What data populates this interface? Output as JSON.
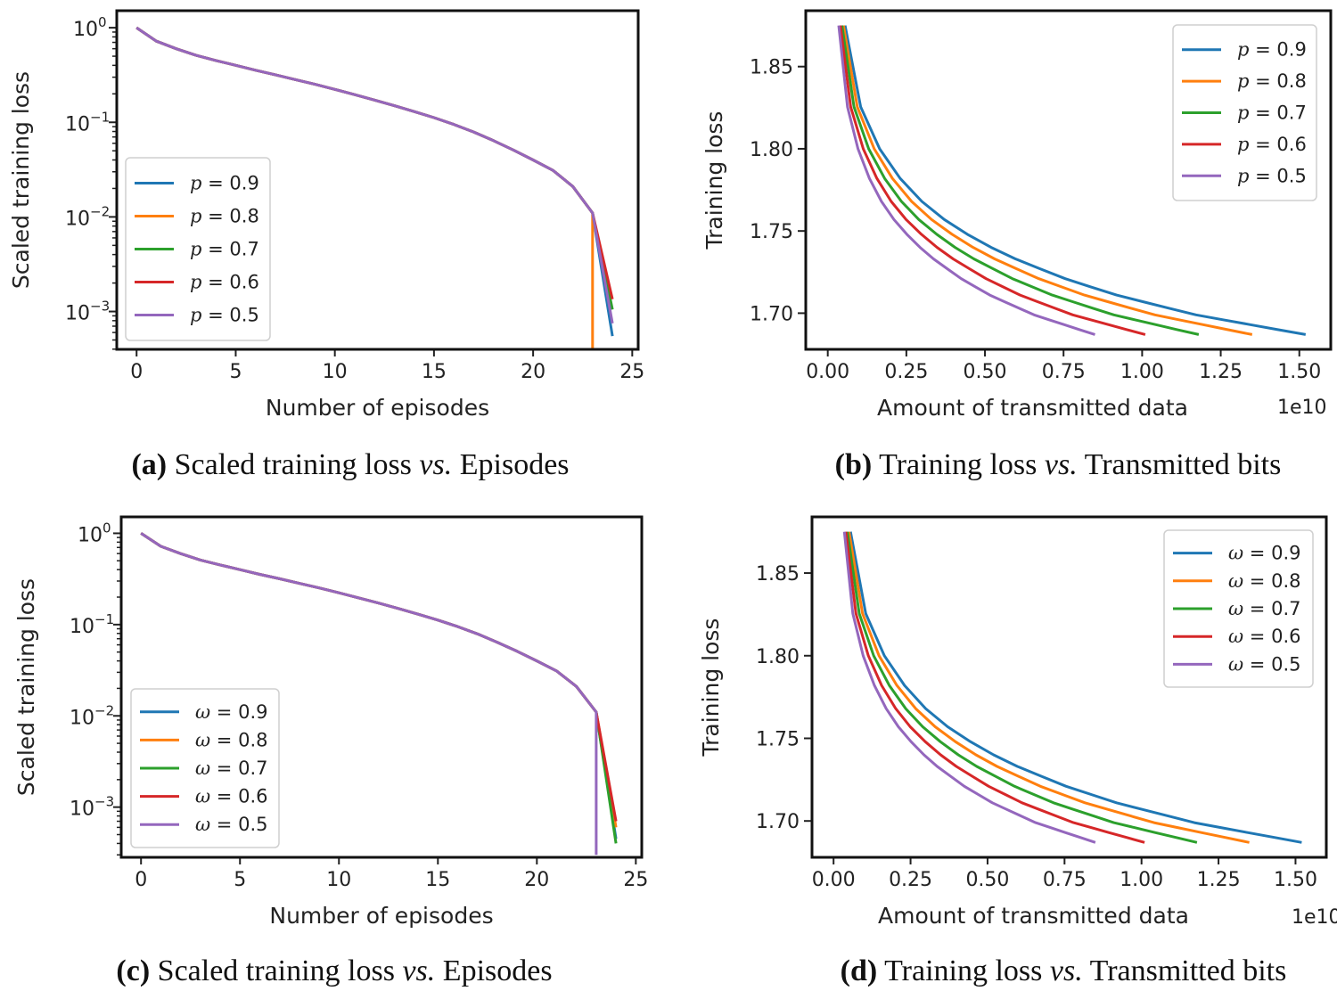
{
  "colors": {
    "series": [
      "#1f77b4",
      "#ff7f0e",
      "#2ca02c",
      "#d62728",
      "#9467bd"
    ]
  },
  "chart_data": [
    {
      "id": "a",
      "type": "line",
      "title": "",
      "xlabel": "Number of episodes",
      "ylabel": "Scaled training loss",
      "yscale": "log",
      "xlim": [
        -1,
        25.3
      ],
      "ylim_exp": [
        -3.4,
        0.18
      ],
      "xticks": [
        0,
        5,
        10,
        15,
        20,
        25
      ],
      "xtick_labels": [
        "0",
        "5",
        "10",
        "15",
        "20",
        "25"
      ],
      "yticks_exp": [
        0,
        -1,
        -2,
        -3
      ],
      "ytick_labels": [
        {
          "base": "10",
          "exp": "0"
        },
        {
          "base": "10",
          "exp": "−1"
        },
        {
          "base": "10",
          "exp": "−2"
        },
        {
          "base": "10",
          "exp": "−3"
        }
      ],
      "legend_position": "center-left",
      "x": [
        0,
        1,
        2,
        3,
        4,
        5,
        6,
        7,
        8,
        9,
        10,
        11,
        12,
        13,
        14,
        15,
        16,
        17,
        18,
        19,
        20,
        21,
        22,
        23
      ],
      "y": [
        1.0,
        0.72,
        0.6,
        0.51,
        0.45,
        0.4,
        0.355,
        0.318,
        0.283,
        0.252,
        0.223,
        0.196,
        0.172,
        0.15,
        0.13,
        0.112,
        0.095,
        0.079,
        0.064,
        0.051,
        0.04,
        0.031,
        0.021,
        0.011
      ],
      "series": [
        {
          "name": "p = 0.9",
          "symbol": "p",
          "value": "0.9",
          "end": [
            24,
            0.00055
          ]
        },
        {
          "name": "p = 0.8",
          "symbol": "p",
          "value": "0.8",
          "end": [
            23,
            0.0003
          ]
        },
        {
          "name": "p = 0.7",
          "symbol": "p",
          "value": "0.7",
          "end": [
            24,
            0.00105
          ]
        },
        {
          "name": "p = 0.6",
          "symbol": "p",
          "value": "0.6",
          "end": [
            24,
            0.00135
          ]
        },
        {
          "name": "p = 0.5",
          "symbol": "p",
          "value": "0.5",
          "end": [
            24,
            0.00075
          ]
        }
      ]
    },
    {
      "id": "b",
      "type": "line",
      "title": "",
      "xlabel": "Amount of transmitted data",
      "ylabel": "Training loss",
      "x_offset_label": "1e10",
      "xlim": [
        -0.07,
        1.6
      ],
      "ylim": [
        1.678,
        1.884
      ],
      "xticks": [
        0,
        0.25,
        0.5,
        0.75,
        1.0,
        1.25,
        1.5
      ],
      "xtick_labels": [
        "0.00",
        "0.25",
        "0.50",
        "0.75",
        "1.00",
        "1.25",
        "1.50"
      ],
      "yticks": [
        1.85,
        1.8,
        1.75,
        1.7
      ],
      "ytick_labels": [
        "1.85",
        "1.80",
        "1.75",
        "1.70"
      ],
      "legend_position": "top-right",
      "loss_curve": [
        1.875,
        1.8255,
        1.8,
        1.782,
        1.768,
        1.757,
        1.748,
        1.74,
        1.733,
        1.727,
        1.721,
        1.716,
        1.711,
        1.707,
        1.703,
        1.699,
        1.696,
        1.693,
        1.69,
        1.687
      ],
      "series": [
        {
          "name": "p = 0.9",
          "symbol": "p",
          "value": "0.9",
          "x_end": 1.52
        },
        {
          "name": "p = 0.8",
          "symbol": "p",
          "value": "0.8",
          "x_end": 1.35
        },
        {
          "name": "p = 0.7",
          "symbol": "p",
          "value": "0.7",
          "x_end": 1.18
        },
        {
          "name": "p = 0.6",
          "symbol": "p",
          "value": "0.6",
          "x_end": 1.01
        },
        {
          "name": "p = 0.5",
          "symbol": "p",
          "value": "0.5",
          "x_end": 0.85
        }
      ]
    },
    {
      "id": "c",
      "type": "line",
      "title": "",
      "xlabel": "Number of episodes",
      "ylabel": "Scaled training loss",
      "yscale": "log",
      "xlim": [
        -1,
        25.3
      ],
      "ylim_exp": [
        -3.55,
        0.18
      ],
      "xticks": [
        0,
        5,
        10,
        15,
        20,
        25
      ],
      "xtick_labels": [
        "0",
        "5",
        "10",
        "15",
        "20",
        "25"
      ],
      "yticks_exp": [
        0,
        -1,
        -2,
        -3
      ],
      "ytick_labels": [
        {
          "base": "10",
          "exp": "0"
        },
        {
          "base": "10",
          "exp": "−1"
        },
        {
          "base": "10",
          "exp": "−2"
        },
        {
          "base": "10",
          "exp": "−3"
        }
      ],
      "legend_position": "lower-left",
      "x": [
        0,
        1,
        2,
        3,
        4,
        5,
        6,
        7,
        8,
        9,
        10,
        11,
        12,
        13,
        14,
        15,
        16,
        17,
        18,
        19,
        20,
        21,
        22,
        23
      ],
      "y": [
        1.0,
        0.72,
        0.6,
        0.51,
        0.45,
        0.4,
        0.355,
        0.318,
        0.283,
        0.252,
        0.223,
        0.196,
        0.172,
        0.15,
        0.13,
        0.112,
        0.095,
        0.079,
        0.064,
        0.051,
        0.04,
        0.031,
        0.021,
        0.011
      ],
      "series": [
        {
          "name": "ω = 0.9",
          "symbol": "ω",
          "value": "0.9",
          "end": [
            24,
            0.00045
          ]
        },
        {
          "name": "ω = 0.8",
          "symbol": "ω",
          "value": "0.8",
          "end": [
            24,
            0.0006
          ]
        },
        {
          "name": "ω = 0.7",
          "symbol": "ω",
          "value": "0.7",
          "end": [
            24,
            0.0004
          ]
        },
        {
          "name": "ω = 0.6",
          "symbol": "ω",
          "value": "0.6",
          "end": [
            24,
            0.0007
          ]
        },
        {
          "name": "ω = 0.5",
          "symbol": "ω",
          "value": "0.5",
          "end": [
            23,
            0.0003
          ]
        }
      ]
    },
    {
      "id": "d",
      "type": "line",
      "title": "",
      "xlabel": "Amount of transmitted data",
      "ylabel": "Training loss",
      "x_offset_label": "1e10",
      "xlim": [
        -0.07,
        1.6
      ],
      "ylim": [
        1.678,
        1.884
      ],
      "xticks": [
        0,
        0.25,
        0.5,
        0.75,
        1.0,
        1.25,
        1.5
      ],
      "xtick_labels": [
        "0.00",
        "0.25",
        "0.50",
        "0.75",
        "1.00",
        "1.25",
        "1.50"
      ],
      "yticks": [
        1.85,
        1.8,
        1.75,
        1.7
      ],
      "ytick_labels": [
        "1.85",
        "1.80",
        "1.75",
        "1.70"
      ],
      "legend_position": "top-right",
      "loss_curve": [
        1.875,
        1.8255,
        1.8,
        1.782,
        1.768,
        1.757,
        1.748,
        1.74,
        1.733,
        1.727,
        1.721,
        1.716,
        1.711,
        1.707,
        1.703,
        1.699,
        1.696,
        1.693,
        1.69,
        1.687
      ],
      "series": [
        {
          "name": "ω = 0.9",
          "symbol": "ω",
          "value": "0.9",
          "x_end": 1.52
        },
        {
          "name": "ω = 0.8",
          "symbol": "ω",
          "value": "0.8",
          "x_end": 1.35
        },
        {
          "name": "ω = 0.7",
          "symbol": "ω",
          "value": "0.7",
          "x_end": 1.18
        },
        {
          "name": "ω = 0.6",
          "symbol": "ω",
          "value": "0.6",
          "x_end": 1.01
        },
        {
          "name": "ω = 0.5",
          "symbol": "ω",
          "value": "0.5",
          "x_end": 0.85
        }
      ]
    }
  ],
  "captions": [
    {
      "label": "(a)",
      "part1": " Scaled training loss ",
      "italic": "vs.",
      "part2": " Episodes"
    },
    {
      "label": "(b)",
      "part1": " Training loss ",
      "italic": "vs.",
      "part2": " Transmitted bits"
    },
    {
      "label": "(c)",
      "part1": " Scaled training loss ",
      "italic": "vs.",
      "part2": " Episodes"
    },
    {
      "label": "(d)",
      "part1": " Training loss ",
      "italic": "vs.",
      "part2": " Transmitted bits"
    }
  ]
}
